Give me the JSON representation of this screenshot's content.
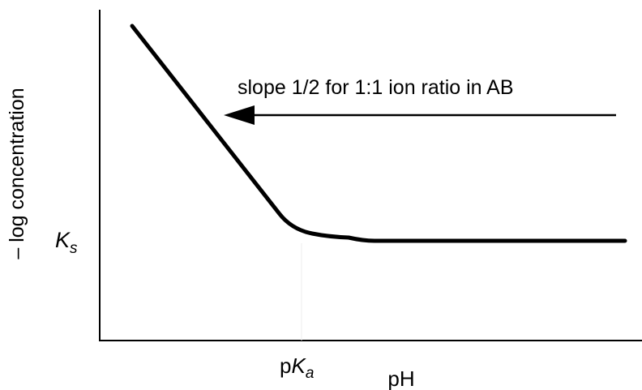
{
  "chart_data": {
    "type": "line",
    "title": "",
    "xlabel": "pH",
    "ylabel": "– log concentration",
    "x_ticks": [
      {
        "prefix": "p",
        "main": "K",
        "sub": "a"
      }
    ],
    "y_ticks": [
      {
        "main": "K",
        "sub": "s"
      }
    ],
    "annotation": {
      "text": "slope 1/2 for 1:1 ion ratio in AB",
      "arrow": "points left to the sloped segment of the curve"
    },
    "series": [
      {
        "shape": "descending straight segment with slope 1/2 at low pH, then a horizontal plateau at Ks for pH above pKa",
        "points": [
          {
            "x": "low pH",
            "y": "high"
          },
          {
            "x": "pKa",
            "y": "Ks"
          },
          {
            "x": "high pH",
            "y": "Ks"
          }
        ]
      }
    ],
    "grid": false,
    "legend": "none",
    "colors": {
      "line": "#000000",
      "axis": "#000000",
      "background": "#ffffff"
    }
  }
}
